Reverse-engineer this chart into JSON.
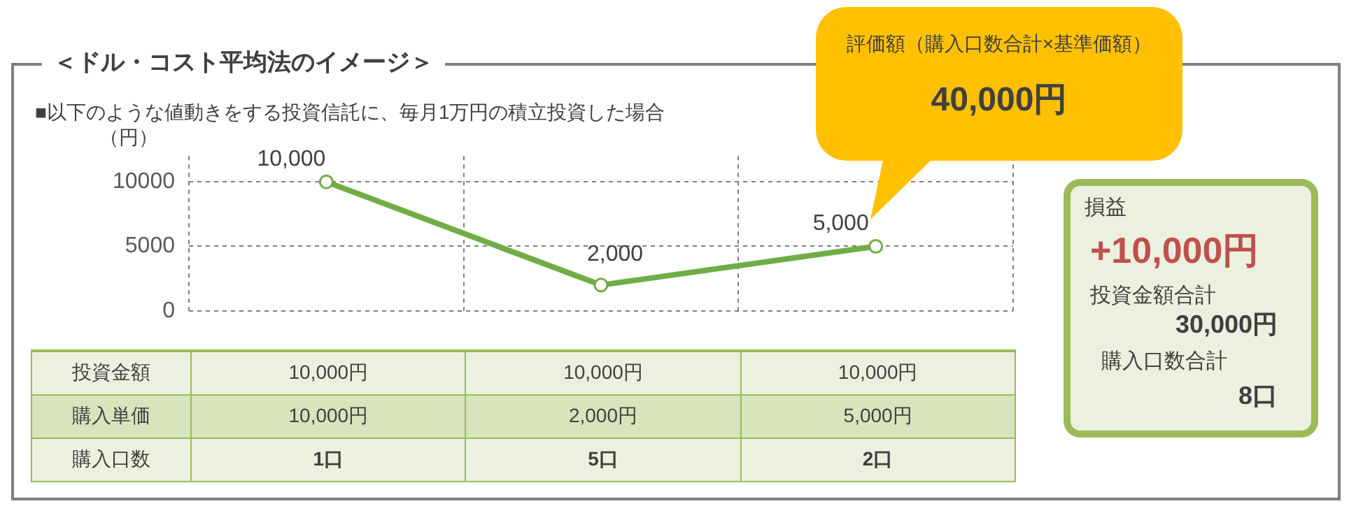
{
  "chart_data": {
    "type": "line",
    "title": "＜ドル・コスト平均法のイメージ＞",
    "subtitle": "■以下のような値動きをする投資信託に、毎月1万円の積立投資した場合",
    "ylabel": "（円）",
    "categories": [
      null,
      null,
      null
    ],
    "series": [
      {
        "color": "#70ad47",
        "values": [
          10000,
          2000,
          5000
        ],
        "value_labels": [
          "10,000",
          "2,000",
          "5,000"
        ]
      }
    ],
    "ylim": [
      0,
      12000
    ],
    "yticks": [
      0,
      5000,
      10000
    ],
    "grid": true,
    "legend": false,
    "marker": "circle",
    "line_style": "solid",
    "annotations": [
      "投資金額",
      "10,000円",
      "10,000円",
      "10,000円",
      "購入単価",
      "10,000円",
      "2,000円",
      "5,000円",
      "購入口数",
      "1口",
      "5口",
      "2口",
      "評価額（購入口数合計×基準価額）",
      "40,000円",
      "損益",
      "+10,000円",
      "投資金額合計",
      "30,000円",
      "購入口数合計",
      "8口"
    ]
  }
}
